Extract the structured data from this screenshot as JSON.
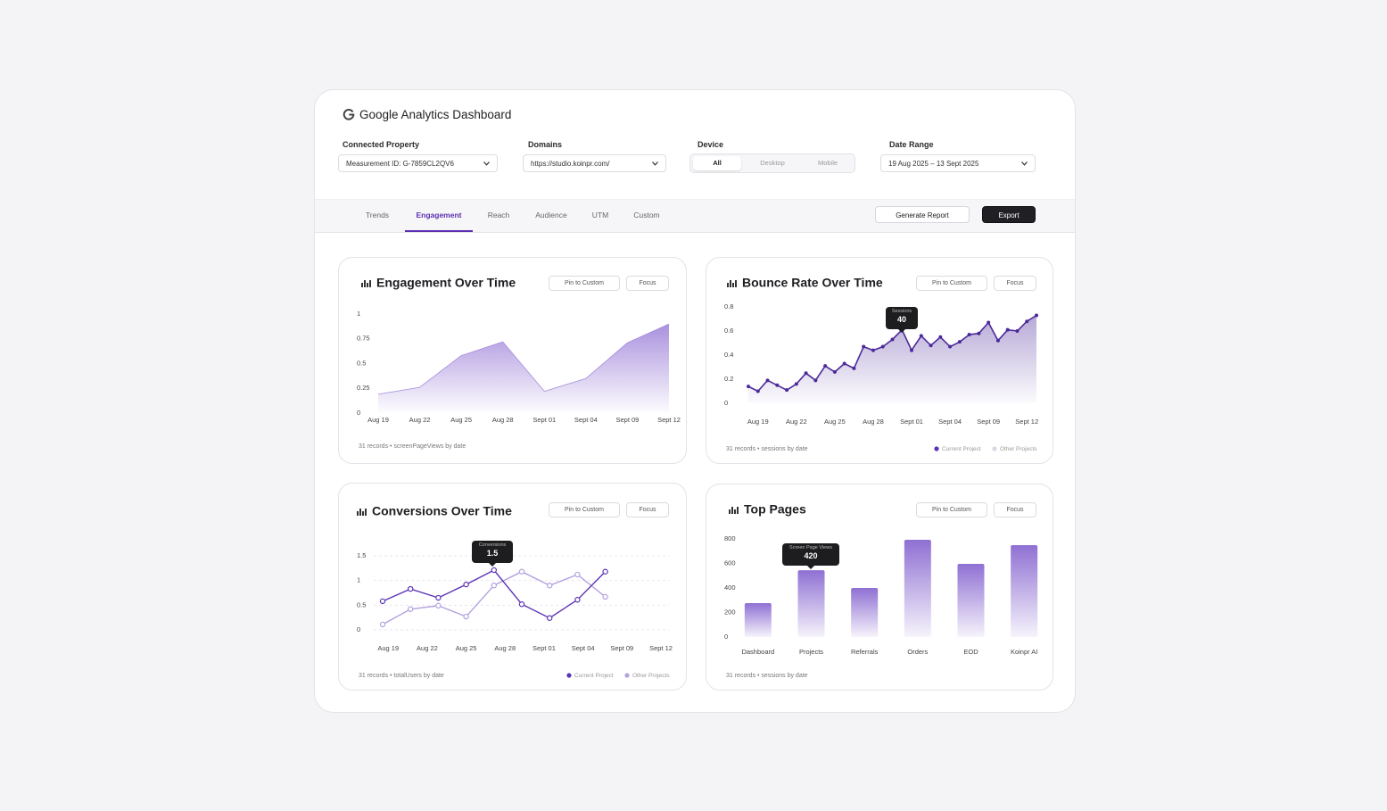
{
  "header": {
    "title": "Google Analytics Dashboard"
  },
  "filters": [
    {
      "label": "Connected Property",
      "value": "Measurement ID: G-7859CL2QV6"
    },
    {
      "label": "Domains",
      "value": "https://studio.koinpr.com/"
    },
    {
      "label": "Device",
      "options": [
        "All",
        "Desktop",
        "Mobile"
      ],
      "selected": 0
    },
    {
      "label": "Date Range",
      "value": "19 Aug 2025 – 13 Sept 2025"
    }
  ],
  "tabs": {
    "items": [
      "Trends",
      "Engagement",
      "Reach",
      "Audience",
      "UTM",
      "Custom"
    ],
    "active": 1
  },
  "actions": [
    "Generate Report",
    "Export"
  ],
  "chart_data": [
    {
      "type": "area",
      "title": "Engagement Over Time",
      "buttons": [
        "Pin to Custom",
        "Focus"
      ],
      "categories": [
        "Aug 19",
        "Aug 22",
        "Aug 25",
        "Aug 28",
        "Sept 01",
        "Sept 04",
        "Sept 09",
        "Sept 12"
      ],
      "values": [
        0.19,
        0.26,
        0.58,
        0.72,
        0.22,
        0.35,
        0.71,
        0.9
      ],
      "color": "#a58bdc",
      "ylim": [
        0,
        1
      ],
      "yticks": [
        0,
        0.25,
        0.5,
        0.75,
        1
      ],
      "footer": "31 records • screenPageViews by date"
    },
    {
      "type": "area",
      "markers": true,
      "title": "Bounce Rate Over Time",
      "buttons": [
        "Pin to Custom",
        "Focus"
      ],
      "categories": [
        null,
        "Aug 19",
        null,
        null,
        null,
        "Aug 22",
        null,
        null,
        null,
        "Aug 25",
        null,
        null,
        null,
        "Aug 28",
        null,
        null,
        null,
        "Sept 01",
        null,
        null,
        null,
        "Sept 04",
        null,
        null,
        null,
        "Sept 09",
        null,
        null,
        null,
        "Sept 12",
        null
      ],
      "values": [
        0.14,
        0.1,
        0.19,
        0.15,
        0.11,
        0.16,
        0.25,
        0.19,
        0.31,
        0.26,
        0.33,
        0.29,
        0.47,
        0.44,
        0.47,
        0.53,
        0.61,
        0.44,
        0.56,
        0.48,
        0.55,
        0.47,
        0.51,
        0.57,
        0.58,
        0.67,
        0.52,
        0.61,
        0.6,
        0.68,
        0.73
      ],
      "color": "#4b2a9a",
      "ylim": [
        0,
        0.8
      ],
      "yticks": [
        0,
        0.2,
        0.4,
        0.6,
        0.8
      ],
      "tooltip": {
        "label": "Sessions",
        "value": 40
      },
      "legend": [
        {
          "name": "Current Project",
          "color": "#5b33b5"
        },
        {
          "name": "Other Projects",
          "color": "#dcd8e4"
        }
      ],
      "footer": "31 records • sessions by date"
    },
    {
      "type": "line",
      "title": "Conversions Over Time",
      "buttons": [
        "Pin to Custom",
        "Focus"
      ],
      "x": [
        0,
        1,
        2,
        3,
        4,
        5,
        6,
        7,
        8
      ],
      "xlim": [
        0,
        10
      ],
      "xticks": [
        {
          "value": 0.2,
          "label": "Aug 19"
        },
        {
          "value": 1.6,
          "label": "Aug 22"
        },
        {
          "value": 3.0,
          "label": "Aug 25"
        },
        {
          "value": 4.4,
          "label": "Aug 28"
        },
        {
          "value": 5.8,
          "label": "Sept 01"
        },
        {
          "value": 7.2,
          "label": "Sept 04"
        },
        {
          "value": 8.6,
          "label": "Sept 09"
        },
        {
          "value": 10,
          "label": "Sept 12"
        }
      ],
      "series": [
        {
          "name": "Current Project",
          "color": "#5b33b5",
          "values": [
            0.58,
            0.83,
            0.65,
            0.92,
            1.21,
            0.52,
            0.24,
            0.61,
            1.18
          ]
        },
        {
          "name": "Other Projects",
          "color": "#b3a1e0",
          "values": [
            0.11,
            0.42,
            0.49,
            0.27,
            0.9,
            1.18,
            0.9,
            1.12,
            0.67
          ]
        }
      ],
      "ylim": [
        0,
        1.5
      ],
      "yticks": [
        0,
        0.5,
        1,
        1.5
      ],
      "grid": true,
      "tooltip": {
        "label": "Conversions",
        "value": 1.5
      },
      "footer": "31 records • totalUsers by date"
    },
    {
      "type": "bar",
      "title": "Top Pages",
      "buttons": [
        "Pin to Custom",
        "Focus"
      ],
      "categories": [
        "Dashboard",
        "Projects",
        "Referrals",
        "Orders",
        "EOD",
        "Koinpr AI"
      ],
      "values": [
        276,
        545,
        400,
        793,
        596,
        749
      ],
      "color": "#8f70d3",
      "ylim": [
        0,
        800
      ],
      "yticks": [
        0,
        200,
        400,
        600,
        800
      ],
      "tooltip": {
        "label": "Screen Page Views",
        "value": 420
      },
      "footer": "31 records • sessions by date"
    }
  ]
}
